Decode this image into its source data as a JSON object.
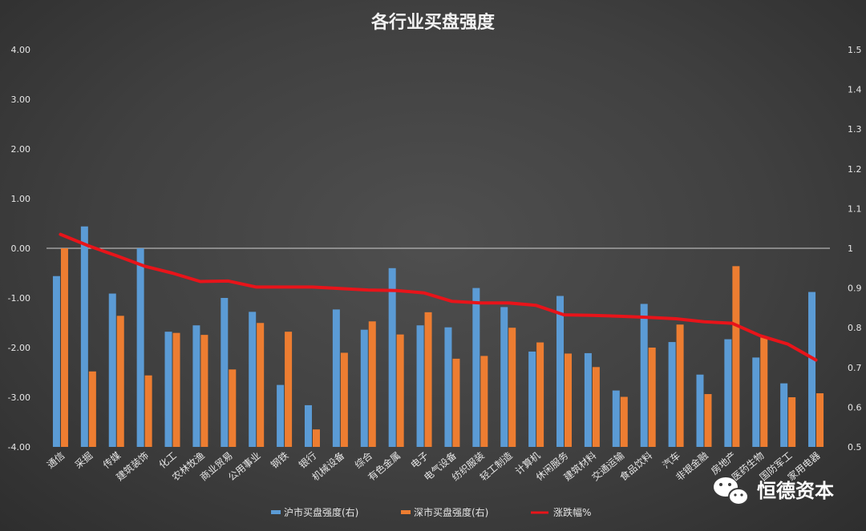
{
  "chart_data": {
    "type": "bar",
    "title": "各行业买盘强度",
    "categories": [
      "通信",
      "采掘",
      "传媒",
      "建筑装饰",
      "化工",
      "农林牧渔",
      "商业贸易",
      "公用事业",
      "钢铁",
      "银行",
      "机械设备",
      "综合",
      "有色金属",
      "电子",
      "电气设备",
      "纺织服装",
      "轻工制造",
      "计算机",
      "休闲服务",
      "建筑材料",
      "交通运输",
      "食品饮料",
      "汽车",
      "非银金融",
      "房地产",
      "医药生物",
      "国防军工",
      "家用电器"
    ],
    "left_axis": {
      "ylim": [
        -4,
        4
      ],
      "ticks": [
        "4.00",
        "3.00",
        "2.00",
        "1.00",
        "0.00",
        "-1.00",
        "-2.00",
        "-3.00",
        "-4.00"
      ]
    },
    "right_axis": {
      "ylim": [
        0.5,
        1.5
      ],
      "ticks": [
        "1.5",
        "1.4",
        "1.3",
        "1.2",
        "1.1",
        "1",
        "0.9",
        "0.8",
        "0.7",
        "0.6",
        "0.5"
      ]
    },
    "series": [
      {
        "name": "沪市买盘强度(右)",
        "kind": "bar",
        "axis": "right",
        "color": "#5b9bd5",
        "values": [
          0.93,
          1.055,
          0.886,
          1.0,
          0.79,
          0.806,
          0.875,
          0.84,
          0.656,
          0.605,
          0.846,
          0.795,
          0.95,
          0.806,
          0.801,
          0.9,
          0.852,
          0.74,
          0.88,
          0.736,
          0.642,
          0.86,
          0.764,
          0.682,
          0.771,
          0.725,
          0.66,
          0.89
        ]
      },
      {
        "name": "深市买盘强度(右)",
        "kind": "bar",
        "axis": "right",
        "color": "#ed7d31",
        "values": [
          1.0,
          0.69,
          0.83,
          0.68,
          0.787,
          0.782,
          0.695,
          0.812,
          0.79,
          0.544,
          0.737,
          0.816,
          0.783,
          0.839,
          0.722,
          0.729,
          0.8,
          0.763,
          0.735,
          0.701,
          0.626,
          0.75,
          0.808,
          0.633,
          0.955,
          0.776,
          0.625,
          0.635
        ]
      },
      {
        "name": "涨跌幅%",
        "kind": "line",
        "axis": "left",
        "color": "#e8141a",
        "values": [
          0.28,
          0.05,
          -0.15,
          -0.36,
          -0.5,
          -0.67,
          -0.66,
          -0.78,
          -0.78,
          -0.78,
          -0.81,
          -0.84,
          -0.85,
          -0.9,
          -1.07,
          -1.1,
          -1.1,
          -1.15,
          -1.34,
          -1.35,
          -1.37,
          -1.39,
          -1.42,
          -1.48,
          -1.51,
          -1.76,
          -1.93,
          -2.25
        ]
      }
    ],
    "legend_position": "bottom",
    "grid": false
  },
  "watermark": {
    "text": "恒德资本",
    "icon": "wechat-icon"
  }
}
